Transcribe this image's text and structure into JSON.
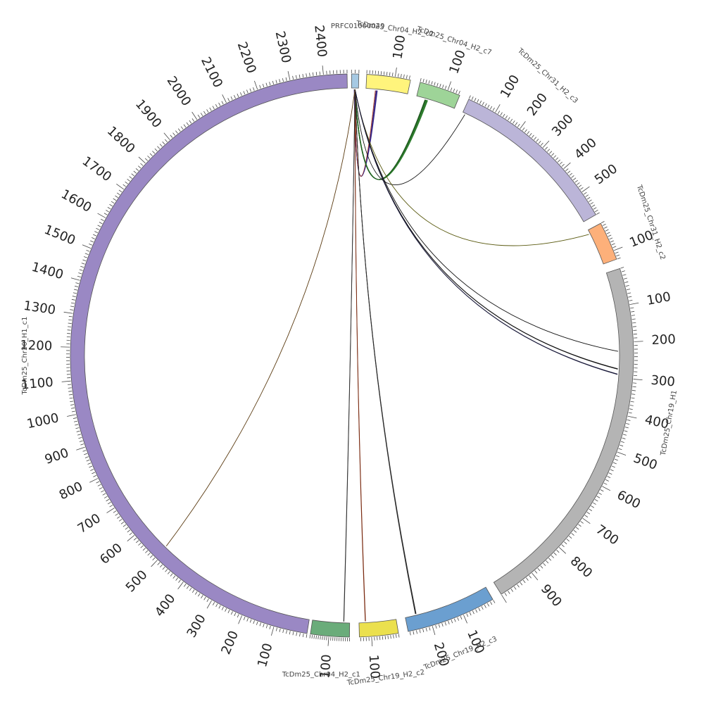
{
  "diagram": {
    "segments": [
      {
        "id": "s1",
        "name": "TcDm25_Chr30_H1_c1",
        "color": "#9a88c4",
        "length": 2470,
        "ticks": [
          100,
          200,
          300,
          400,
          500,
          600,
          700,
          800,
          900,
          1000,
          1100,
          1200,
          1300,
          1400,
          1500,
          1600,
          1700,
          1800,
          1900,
          2000,
          2100,
          2200,
          2300,
          2400
        ]
      },
      {
        "id": "s2",
        "name": "PRFC01000049",
        "color": "#a6c9e3",
        "length": 20,
        "ticks": []
      },
      {
        "id": "s3",
        "name": "TcDm25_Chr04_H2_c2",
        "color": "#fff47c",
        "length": 155,
        "ticks": [
          100
        ]
      },
      {
        "id": "s4",
        "name": "TcDm25_Chr04_H2_c7",
        "color": "#9ed498",
        "length": 145,
        "ticks": [
          100
        ]
      },
      {
        "id": "s5",
        "name": "TcDm25_Chr31_H2_c3",
        "color": "#bbb5d8",
        "length": 590,
        "ticks": [
          100,
          200,
          300,
          400,
          500
        ]
      },
      {
        "id": "s6",
        "name": "TcDm25_Chr31_H2_c2",
        "color": "#fdb07a",
        "length": 130,
        "ticks": [
          100
        ]
      },
      {
        "id": "s7",
        "name": "TcDm25_Chr19_H1",
        "color": "#b4b4b4",
        "length": 1000,
        "ticks": [
          100,
          200,
          300,
          400,
          500,
          600,
          700,
          800,
          900
        ]
      },
      {
        "id": "s8",
        "name": "TcDm25_Chr19_H2_c3",
        "color": "#6b9fd0",
        "length": 275,
        "ticks": [
          100,
          200
        ]
      },
      {
        "id": "s9",
        "name": "TcDm25_Chr19_H2_c2",
        "color": "#ebe04e",
        "length": 145,
        "ticks": [
          100
        ]
      },
      {
        "id": "s10",
        "name": "TcDm25_Chr04_H2_c1",
        "color": "#6aac7a",
        "length": 190,
        "ticks": [
          100
        ]
      }
    ],
    "links": [
      {
        "from": "s3",
        "from_pos": 40,
        "to": "s2",
        "to_pos": 8,
        "color": "#3a2a8a",
        "count": 5
      },
      {
        "from": "s3",
        "from_pos": 35,
        "to": "s2",
        "to_pos": 10,
        "color": "#b04020",
        "count": 1
      },
      {
        "from": "s4",
        "from_pos": 40,
        "to": "s2",
        "to_pos": 10,
        "color": "#2e7d2e",
        "count": 6
      },
      {
        "from": "s4",
        "from_pos": 34,
        "to": "s2",
        "to_pos": 9,
        "color": "#1f5a1f",
        "count": 3
      },
      {
        "from": "s5",
        "from_pos": 10,
        "to": "s2",
        "to_pos": 10,
        "color": "#111111",
        "count": 1
      },
      {
        "from": "s6",
        "from_pos": 15,
        "to": "s2",
        "to_pos": 10,
        "color": "#5a5a10",
        "count": 1
      },
      {
        "from": "s7",
        "from_pos": 225,
        "to": "s2",
        "to_pos": 10,
        "color": "#111111",
        "count": 1
      },
      {
        "from": "s7",
        "from_pos": 275,
        "to": "s2",
        "to_pos": 10,
        "color": "#111111",
        "count": 2
      },
      {
        "from": "s7",
        "from_pos": 290,
        "to": "s2",
        "to_pos": 10,
        "color": "#1a1a3a",
        "count": 2
      },
      {
        "from": "s8",
        "from_pos": 240,
        "to": "s2",
        "to_pos": 10,
        "color": "#2a2a2a",
        "count": 3
      },
      {
        "from": "s9",
        "from_pos": 120,
        "to": "s2",
        "to_pos": 10,
        "color": "#7a2a10",
        "count": 2
      },
      {
        "from": "s10",
        "from_pos": 30,
        "to": "s2",
        "to_pos": 10,
        "color": "#303030",
        "count": 2
      },
      {
        "from": "s1",
        "from_pos": 510,
        "to": "s2",
        "to_pos": 10,
        "color": "#5a3a10",
        "count": 1
      }
    ]
  }
}
